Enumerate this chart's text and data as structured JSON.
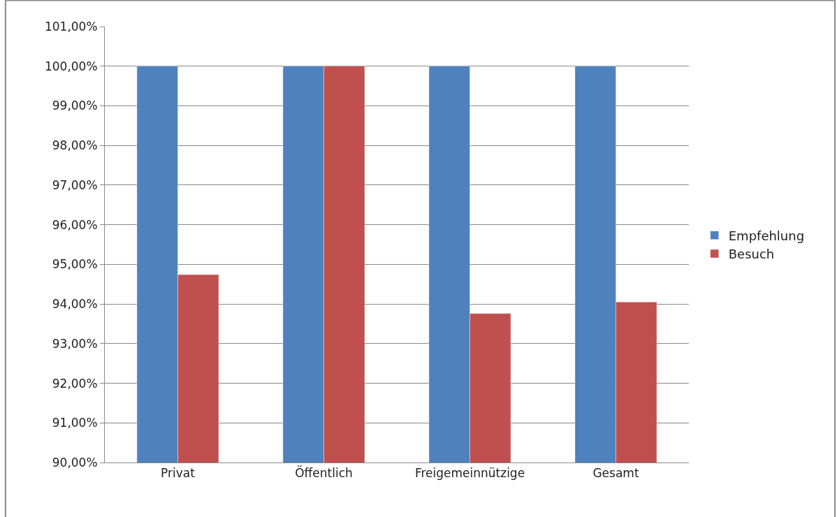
{
  "chart_data": {
    "type": "bar",
    "categories": [
      "Privat",
      "Öffentlich",
      "Freigemeinnützige",
      "Gesamt"
    ],
    "series": [
      {
        "name": "Empfehlung",
        "color": "#4f81bd",
        "values": [
          100,
          100,
          100,
          100
        ]
      },
      {
        "name": "Besuch",
        "color": "#c0504d",
        "values": [
          94.74,
          100,
          93.76,
          94.05
        ]
      }
    ],
    "ylim": [
      90,
      101
    ],
    "yticks": [
      {
        "value": 90,
        "label": "90,00%"
      },
      {
        "value": 91,
        "label": "91,00%"
      },
      {
        "value": 92,
        "label": "92,00%"
      },
      {
        "value": 93,
        "label": "93,00%"
      },
      {
        "value": 94,
        "label": "94,00%"
      },
      {
        "value": 95,
        "label": "95,00%"
      },
      {
        "value": 96,
        "label": "96,00%"
      },
      {
        "value": 97,
        "label": "97,00%"
      },
      {
        "value": 98,
        "label": "98,00%"
      },
      {
        "value": 99,
        "label": "99,00%"
      },
      {
        "value": 100,
        "label": "100,00%"
      },
      {
        "value": 101,
        "label": "101,00%"
      }
    ],
    "grid": "y",
    "legend": "right"
  }
}
